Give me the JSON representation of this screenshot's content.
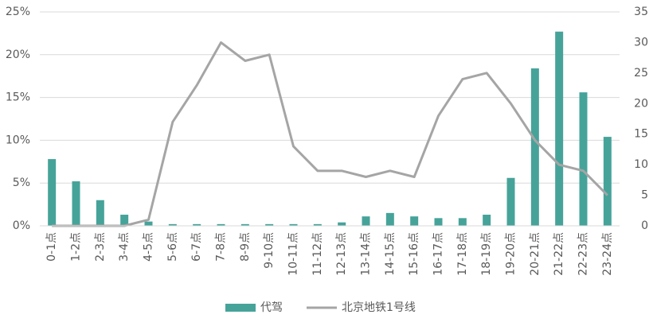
{
  "chart_data": {
    "type": "bar-line",
    "categories": [
      "0-1点",
      "1-2点",
      "2-3点",
      "3-4点",
      "4-5点",
      "5-6点",
      "6-7点",
      "7-8点",
      "8-9点",
      "9-10点",
      "10-11点",
      "11-12点",
      "12-13点",
      "13-14点",
      "14-15点",
      "15-16点",
      "16-17点",
      "17-18点",
      "18-19点",
      "19-20点",
      "20-21点",
      "21-22点",
      "22-23点",
      "23-24点"
    ],
    "series": [
      {
        "name": "代驾",
        "type": "bar",
        "color": "#46a39a",
        "values": [
          7.8,
          5.2,
          3.0,
          1.3,
          0.5,
          0.2,
          0.2,
          0.2,
          0.2,
          0.2,
          0.2,
          0.2,
          0.4,
          1.1,
          1.5,
          1.1,
          0.9,
          0.9,
          1.3,
          5.6,
          18.4,
          22.7,
          15.6,
          10.4
        ]
      },
      {
        "name": "北京地铁1号线",
        "type": "line",
        "axis": "y2",
        "color": "#a5a5a5",
        "values": [
          0,
          0,
          0,
          0,
          1,
          17,
          23,
          30,
          27,
          28,
          13,
          9,
          9,
          8,
          9,
          8,
          18,
          24,
          25,
          20,
          14,
          10,
          9,
          5
        ]
      }
    ],
    "ylim": [
      0,
      25
    ],
    "yticks": [
      {
        "value": 0,
        "label": "0%"
      },
      {
        "value": 5,
        "label": "5%"
      },
      {
        "value": 10,
        "label": "10%"
      },
      {
        "value": 15,
        "label": "15%"
      },
      {
        "value": 20,
        "label": "20%"
      },
      {
        "value": 25,
        "label": "25%"
      }
    ],
    "y2lim": [
      0,
      35
    ],
    "y2ticks": [
      0,
      5,
      10,
      15,
      20,
      25,
      30,
      35
    ],
    "legend": "bottom"
  }
}
